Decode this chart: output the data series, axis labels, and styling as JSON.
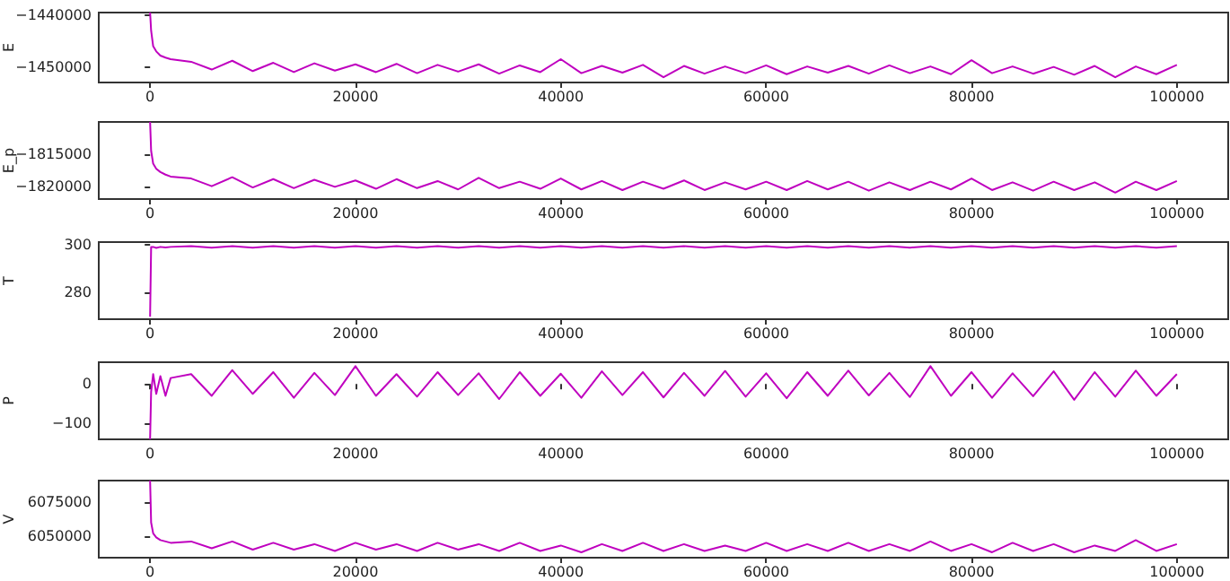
{
  "chart_data": [
    {
      "type": "line",
      "ylabel": "E",
      "xlim": [
        -5000,
        105000
      ],
      "xticks": [
        0,
        20000,
        40000,
        60000,
        80000,
        100000
      ],
      "ylim": [
        -1453000,
        -1439500
      ],
      "yticks": [
        -1450000,
        -1440000
      ],
      "x": [
        0,
        100,
        300,
        600,
        1000,
        1500,
        2000,
        4000,
        6000,
        8000,
        10000,
        12000,
        14000,
        16000,
        18000,
        20000,
        22000,
        24000,
        26000,
        28000,
        30000,
        32000,
        34000,
        36000,
        38000,
        40000,
        42000,
        44000,
        46000,
        48000,
        50000,
        52000,
        54000,
        56000,
        58000,
        60000,
        62000,
        64000,
        66000,
        68000,
        70000,
        72000,
        74000,
        76000,
        78000,
        80000,
        82000,
        84000,
        86000,
        88000,
        90000,
        92000,
        94000,
        96000,
        98000,
        100000
      ],
      "series": [
        {
          "color": "#bf00bf",
          "values": [
            -1439500,
            -1443000,
            -1446000,
            -1447000,
            -1447800,
            -1448200,
            -1448500,
            -1449000,
            -1450500,
            -1448800,
            -1450800,
            -1449200,
            -1451000,
            -1449300,
            -1450700,
            -1449500,
            -1451000,
            -1449400,
            -1451200,
            -1449600,
            -1450900,
            -1449500,
            -1451300,
            -1449700,
            -1451000,
            -1448500,
            -1451200,
            -1449800,
            -1451100,
            -1449600,
            -1452000,
            -1449800,
            -1451300,
            -1449900,
            -1451200,
            -1449700,
            -1451400,
            -1449900,
            -1451100,
            -1449800,
            -1451300,
            -1449700,
            -1451200,
            -1449900,
            -1451400,
            -1448700,
            -1451200,
            -1449900,
            -1451300,
            -1450000,
            -1451500,
            -1449800,
            -1452000,
            -1449900,
            -1451400,
            -1449600
          ]
        }
      ]
    },
    {
      "type": "line",
      "ylabel": "E_p",
      "xlim": [
        -5000,
        105000
      ],
      "xticks": [
        0,
        20000,
        40000,
        60000,
        80000,
        100000
      ],
      "ylim": [
        -1822000,
        -1810000
      ],
      "yticks": [
        -1820000,
        -1815000
      ],
      "x": [
        0,
        100,
        300,
        600,
        1000,
        1500,
        2000,
        4000,
        6000,
        8000,
        10000,
        12000,
        14000,
        16000,
        18000,
        20000,
        22000,
        24000,
        26000,
        28000,
        30000,
        32000,
        34000,
        36000,
        38000,
        40000,
        42000,
        44000,
        46000,
        48000,
        50000,
        52000,
        54000,
        56000,
        58000,
        60000,
        62000,
        64000,
        66000,
        68000,
        70000,
        72000,
        74000,
        76000,
        78000,
        80000,
        82000,
        84000,
        86000,
        88000,
        90000,
        92000,
        94000,
        96000,
        98000,
        100000
      ],
      "series": [
        {
          "color": "#bf00bf",
          "values": [
            -1810000,
            -1814500,
            -1816500,
            -1817300,
            -1817800,
            -1818200,
            -1818500,
            -1818800,
            -1820000,
            -1818600,
            -1820200,
            -1818900,
            -1820300,
            -1819000,
            -1820100,
            -1819100,
            -1820400,
            -1818900,
            -1820300,
            -1819200,
            -1820500,
            -1818700,
            -1820300,
            -1819300,
            -1820400,
            -1818800,
            -1820500,
            -1819200,
            -1820600,
            -1819300,
            -1820400,
            -1819100,
            -1820600,
            -1819400,
            -1820500,
            -1819300,
            -1820600,
            -1819200,
            -1820500,
            -1819300,
            -1820700,
            -1819400,
            -1820600,
            -1819300,
            -1820500,
            -1818800,
            -1820600,
            -1819400,
            -1820700,
            -1819300,
            -1820600,
            -1819400,
            -1821000,
            -1819300,
            -1820600,
            -1819200
          ]
        }
      ]
    },
    {
      "type": "line",
      "ylabel": "T",
      "xlim": [
        -5000,
        105000
      ],
      "xticks": [
        0,
        20000,
        40000,
        60000,
        80000,
        100000
      ],
      "ylim": [
        269,
        301
      ],
      "yticks": [
        280,
        300
      ],
      "x": [
        0,
        100,
        300,
        600,
        1000,
        1500,
        2000,
        4000,
        6000,
        8000,
        10000,
        12000,
        14000,
        16000,
        18000,
        20000,
        22000,
        24000,
        26000,
        28000,
        30000,
        32000,
        34000,
        36000,
        38000,
        40000,
        42000,
        44000,
        46000,
        48000,
        50000,
        52000,
        54000,
        56000,
        58000,
        60000,
        62000,
        64000,
        66000,
        68000,
        70000,
        72000,
        74000,
        76000,
        78000,
        80000,
        82000,
        84000,
        86000,
        88000,
        90000,
        92000,
        94000,
        96000,
        98000,
        100000
      ],
      "series": [
        {
          "color": "#bf00bf",
          "values": [
            270,
            299,
            299,
            298.6,
            299,
            298.8,
            299,
            299.3,
            298.7,
            299.3,
            298.7,
            299.3,
            298.7,
            299.3,
            298.7,
            299.3,
            298.7,
            299.3,
            298.7,
            299.3,
            298.7,
            299.3,
            298.7,
            299.3,
            298.7,
            299.3,
            298.7,
            299.3,
            298.7,
            299.3,
            298.7,
            299.3,
            298.7,
            299.3,
            298.7,
            299.3,
            298.7,
            299.3,
            298.7,
            299.3,
            298.7,
            299.3,
            298.7,
            299.3,
            298.7,
            299.3,
            298.7,
            299.3,
            298.7,
            299.3,
            298.7,
            299.3,
            298.7,
            299.3,
            298.7,
            299.3
          ]
        }
      ]
    },
    {
      "type": "line",
      "ylabel": "P",
      "xlim": [
        -5000,
        105000
      ],
      "xticks": [
        0,
        20000,
        40000,
        60000,
        80000,
        100000
      ],
      "ylim": [
        -140,
        55
      ],
      "yticks": [
        -100,
        0
      ],
      "x": [
        0,
        100,
        300,
        600,
        1000,
        1500,
        2000,
        4000,
        6000,
        8000,
        10000,
        12000,
        14000,
        16000,
        18000,
        20000,
        22000,
        24000,
        26000,
        28000,
        30000,
        32000,
        34000,
        36000,
        38000,
        40000,
        42000,
        44000,
        46000,
        48000,
        50000,
        52000,
        54000,
        56000,
        58000,
        60000,
        62000,
        64000,
        66000,
        68000,
        70000,
        72000,
        74000,
        76000,
        78000,
        80000,
        82000,
        84000,
        86000,
        88000,
        90000,
        92000,
        94000,
        96000,
        98000,
        100000
      ],
      "series": [
        {
          "color": "#bf00bf",
          "values": [
            -140,
            -20,
            25,
            -25,
            20,
            -30,
            15,
            25,
            -30,
            35,
            -25,
            30,
            -35,
            28,
            -28,
            45,
            -30,
            25,
            -32,
            30,
            -28,
            27,
            -38,
            30,
            -30,
            26,
            -35,
            32,
            -28,
            30,
            -34,
            28,
            -30,
            33,
            -32,
            27,
            -36,
            30,
            -30,
            34,
            -29,
            28,
            -33,
            45,
            -30,
            30,
            -35,
            27,
            -31,
            32,
            -40,
            30,
            -32,
            34,
            -30,
            25
          ]
        }
      ]
    },
    {
      "type": "line",
      "ylabel": "V",
      "xlim": [
        -5000,
        105000
      ],
      "xticks": [
        0,
        20000,
        40000,
        60000,
        80000,
        100000
      ],
      "ylim": [
        6034000,
        6091000
      ],
      "yticks": [
        6050000,
        6075000
      ],
      "x": [
        0,
        100,
        300,
        600,
        1000,
        1500,
        2000,
        4000,
        6000,
        8000,
        10000,
        12000,
        14000,
        16000,
        18000,
        20000,
        22000,
        24000,
        26000,
        28000,
        30000,
        32000,
        34000,
        36000,
        38000,
        40000,
        42000,
        44000,
        46000,
        48000,
        50000,
        52000,
        54000,
        56000,
        58000,
        60000,
        62000,
        64000,
        66000,
        68000,
        70000,
        72000,
        74000,
        76000,
        78000,
        80000,
        82000,
        84000,
        86000,
        88000,
        90000,
        92000,
        94000,
        96000,
        98000,
        100000
      ],
      "series": [
        {
          "color": "#bf00bf",
          "values": [
            6091000,
            6060000,
            6052000,
            6049000,
            6047000,
            6046000,
            6045000,
            6046000,
            6041000,
            6046000,
            6040000,
            6045000,
            6040000,
            6044000,
            6039000,
            6045000,
            6040000,
            6044000,
            6039000,
            6045000,
            6040000,
            6044000,
            6039000,
            6045000,
            6039000,
            6043000,
            6038000,
            6044000,
            6039000,
            6045000,
            6039000,
            6044000,
            6039000,
            6043000,
            6039000,
            6045000,
            6039000,
            6044000,
            6039000,
            6045000,
            6039000,
            6044000,
            6039000,
            6046000,
            6039000,
            6044000,
            6038000,
            6045000,
            6039000,
            6044000,
            6038000,
            6043000,
            6039000,
            6047000,
            6039000,
            6044000
          ]
        }
      ]
    }
  ]
}
